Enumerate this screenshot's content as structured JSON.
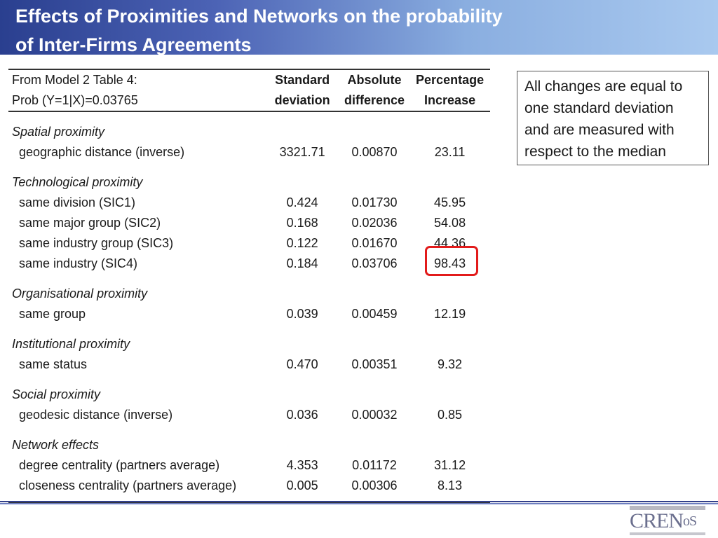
{
  "slide": {
    "title_line1": "Effects of Proximities and Networks on the probability",
    "title_line2": "of Inter-Firms Agreements"
  },
  "table": {
    "header_row1": {
      "label": "From Model 2 Table 4:",
      "col1": "Standard",
      "col2": "Absolute",
      "col3": "Percentage"
    },
    "header_row2": {
      "label": "Prob (Y=1|X)=0.03765",
      "col1": "deviation",
      "col2": "difference",
      "col3": "Increase"
    },
    "sections": [
      {
        "heading": "Spatial proximity",
        "rows": [
          {
            "label": "geographic distance (inverse)",
            "sd": "3321.71",
            "abs": "0.00870",
            "pct": "23.11"
          }
        ]
      },
      {
        "heading": "Technological proximity",
        "rows": [
          {
            "label": "same division  (SIC1)",
            "sd": "0.424",
            "abs": "0.01730",
            "pct": "45.95"
          },
          {
            "label": "same major group  (SIC2)",
            "sd": "0.168",
            "abs": "0.02036",
            "pct": "54.08"
          },
          {
            "label": "same industry group (SIC3)",
            "sd": "0.122",
            "abs": "0.01670",
            "pct": "44.36"
          },
          {
            "label": "same industry (SIC4)",
            "sd": "0.184",
            "abs": "0.03706",
            "pct": "98.43"
          }
        ]
      },
      {
        "heading": "Organisational proximity",
        "rows": [
          {
            "label": "same group",
            "sd": "0.039",
            "abs": "0.00459",
            "pct": "12.19"
          }
        ]
      },
      {
        "heading": "Institutional proximity",
        "rows": [
          {
            "label": "same status",
            "sd": "0.470",
            "abs": "0.00351",
            "pct": "9.32"
          }
        ]
      },
      {
        "heading": "Social proximity",
        "rows": [
          {
            "label": "geodesic distance (inverse)",
            "sd": "0.036",
            "abs": "0.00032",
            "pct": "0.85"
          }
        ]
      },
      {
        "heading": "Network effects",
        "rows": [
          {
            "label": "degree centrality (partners average)",
            "sd": "4.353",
            "abs": "0.01172",
            "pct": "31.12"
          },
          {
            "label": "closeness centrality (partners average)",
            "sd": "0.005",
            "abs": "0.00306",
            "pct": "8.13"
          }
        ]
      }
    ]
  },
  "note": {
    "text": "All changes are equal to one standard deviation and are measured with respect to the median"
  },
  "logo": {
    "text_main": "CREN",
    "text_small": "oS"
  },
  "colors": {
    "highlight": "#e21b1b",
    "title_gradient_start": "#2a3f8f",
    "title_gradient_end": "#a9c9ef"
  }
}
